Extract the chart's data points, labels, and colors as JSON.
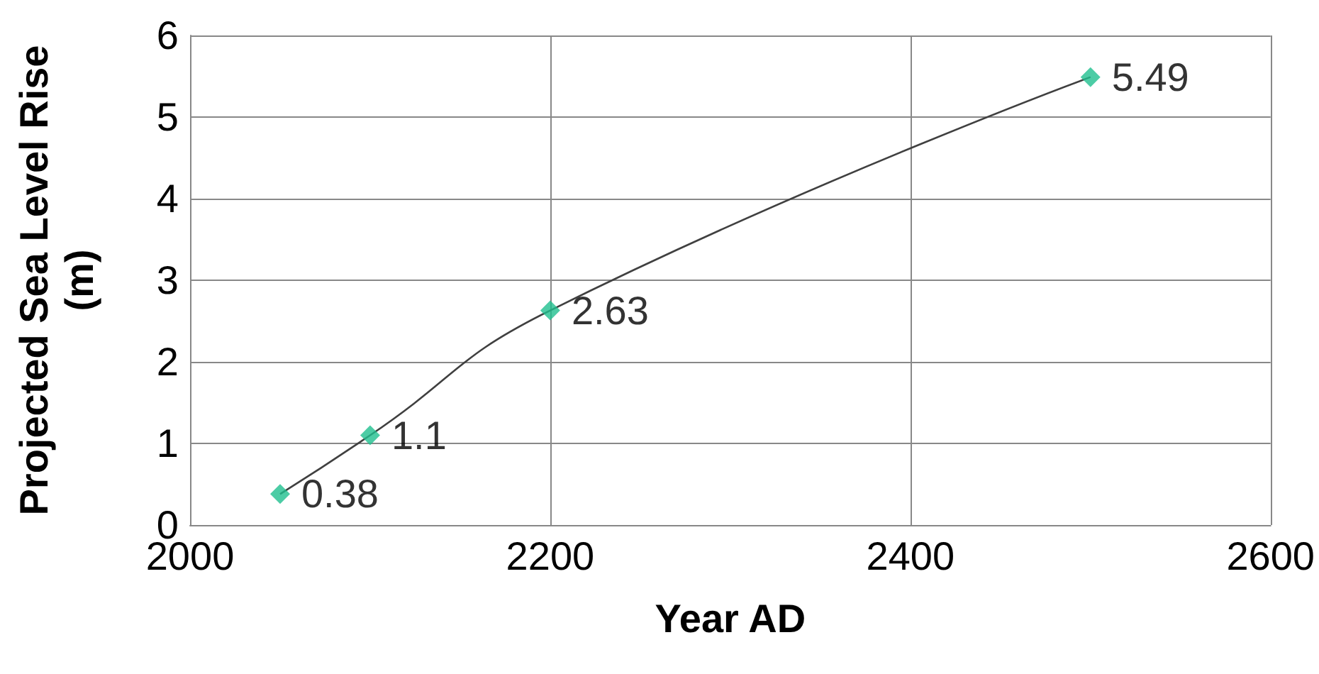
{
  "chart_data": {
    "type": "scatter",
    "xlabel": "Year AD",
    "ylabel": "Projected Sea Level Rise (m)",
    "x": [
      2050,
      2100,
      2200,
      2500
    ],
    "series": [
      {
        "type": "line",
        "color": "#404040",
        "values": [
          0.38,
          1.1,
          2.63,
          5.49
        ],
        "marker": "none"
      },
      {
        "color": "#1fbf8f",
        "values": [
          0.38,
          1.1,
          2.63,
          5.49
        ],
        "value_labels": [
          "0.38",
          "1.1",
          "2.63",
          "5.49"
        ]
      }
    ],
    "marker": "diamond",
    "xlim": [
      2000,
      2600
    ],
    "xticks": [
      2000,
      2200,
      2400,
      2600
    ],
    "ylim": [
      0,
      6
    ],
    "yticks": [
      0,
      1,
      2,
      3,
      4,
      5,
      6
    ],
    "grid": true
  }
}
